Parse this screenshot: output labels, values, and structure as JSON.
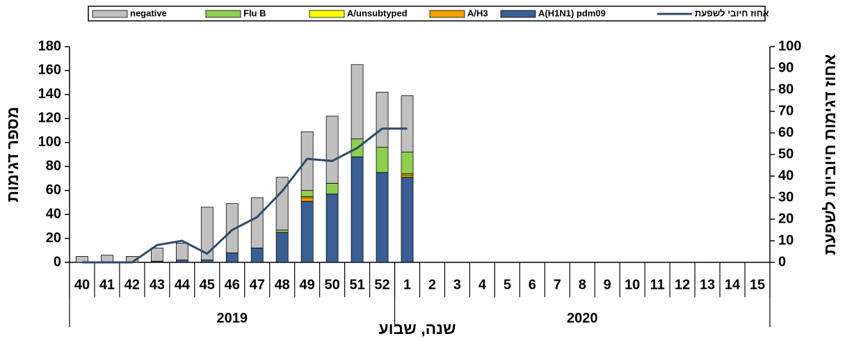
{
  "chart_data": {
    "type": "bar",
    "stacked": true,
    "categories": [
      "40",
      "41",
      "42",
      "43",
      "44",
      "45",
      "46",
      "47",
      "48",
      "49",
      "50",
      "51",
      "52",
      "1",
      "2",
      "3",
      "4",
      "5",
      "6",
      "7",
      "8",
      "9",
      "10",
      "11",
      "12",
      "13",
      "14",
      "15"
    ],
    "groups": [
      {
        "label": "2019",
        "span": 13
      },
      {
        "label": "2020",
        "span": 15
      }
    ],
    "y_label": "מספר דגימות",
    "y2_label": "אחוז דגימות חיוביות לשפעת",
    "x_label": "שנה, שבוע",
    "ylim": [
      0,
      180
    ],
    "yticks": [
      0,
      20,
      40,
      60,
      80,
      100,
      120,
      140,
      160,
      180
    ],
    "y2lim": [
      0,
      100
    ],
    "y2ticks": [
      0,
      10,
      20,
      30,
      40,
      50,
      60,
      70,
      80,
      90,
      100
    ],
    "series": [
      {
        "name": "A(H1N1) pdm09",
        "color": "#3a5f96",
        "values": [
          0,
          0,
          0,
          1,
          2,
          2,
          8,
          12,
          25,
          51,
          57,
          88,
          75,
          71,
          null,
          null,
          null,
          null,
          null,
          null,
          null,
          null,
          null,
          null,
          null,
          null,
          null,
          null
        ]
      },
      {
        "name": "A/H3",
        "color": "#f5a000",
        "values": [
          0,
          0,
          0,
          0,
          0,
          0,
          0,
          0,
          0,
          3,
          0,
          0,
          0,
          2,
          null,
          null,
          null,
          null,
          null,
          null,
          null,
          null,
          null,
          null,
          null,
          null,
          null,
          null
        ]
      },
      {
        "name": "A/unsubtyped",
        "color": "#ffff00",
        "values": [
          0,
          0,
          0,
          0,
          0,
          0,
          0,
          0,
          0,
          1,
          0,
          0,
          0,
          1,
          null,
          null,
          null,
          null,
          null,
          null,
          null,
          null,
          null,
          null,
          null,
          null,
          null,
          null
        ]
      },
      {
        "name": "Flu B",
        "color": "#8fcf50",
        "values": [
          0,
          0,
          0,
          0,
          0,
          0,
          0,
          0,
          2,
          5,
          9,
          15,
          21,
          18,
          null,
          null,
          null,
          null,
          null,
          null,
          null,
          null,
          null,
          null,
          null,
          null,
          null,
          null
        ]
      },
      {
        "name": "negative",
        "color": "#c0c0c0",
        "values": [
          5,
          6,
          5,
          11,
          14,
          44,
          41,
          42,
          44,
          49,
          56,
          62,
          46,
          47,
          null,
          null,
          null,
          null,
          null,
          null,
          null,
          null,
          null,
          null,
          null,
          null,
          null,
          null
        ]
      },
      {
        "name": "אחוז חיובי לשפעת",
        "type": "line",
        "axis": "y2",
        "color": "#2e4a6b",
        "values": [
          0,
          0,
          0,
          8,
          10,
          4,
          15,
          21,
          33,
          48,
          47,
          53,
          62,
          62,
          null,
          null,
          null,
          null,
          null,
          null,
          null,
          null,
          null,
          null,
          null,
          null,
          null,
          null
        ]
      }
    ]
  }
}
